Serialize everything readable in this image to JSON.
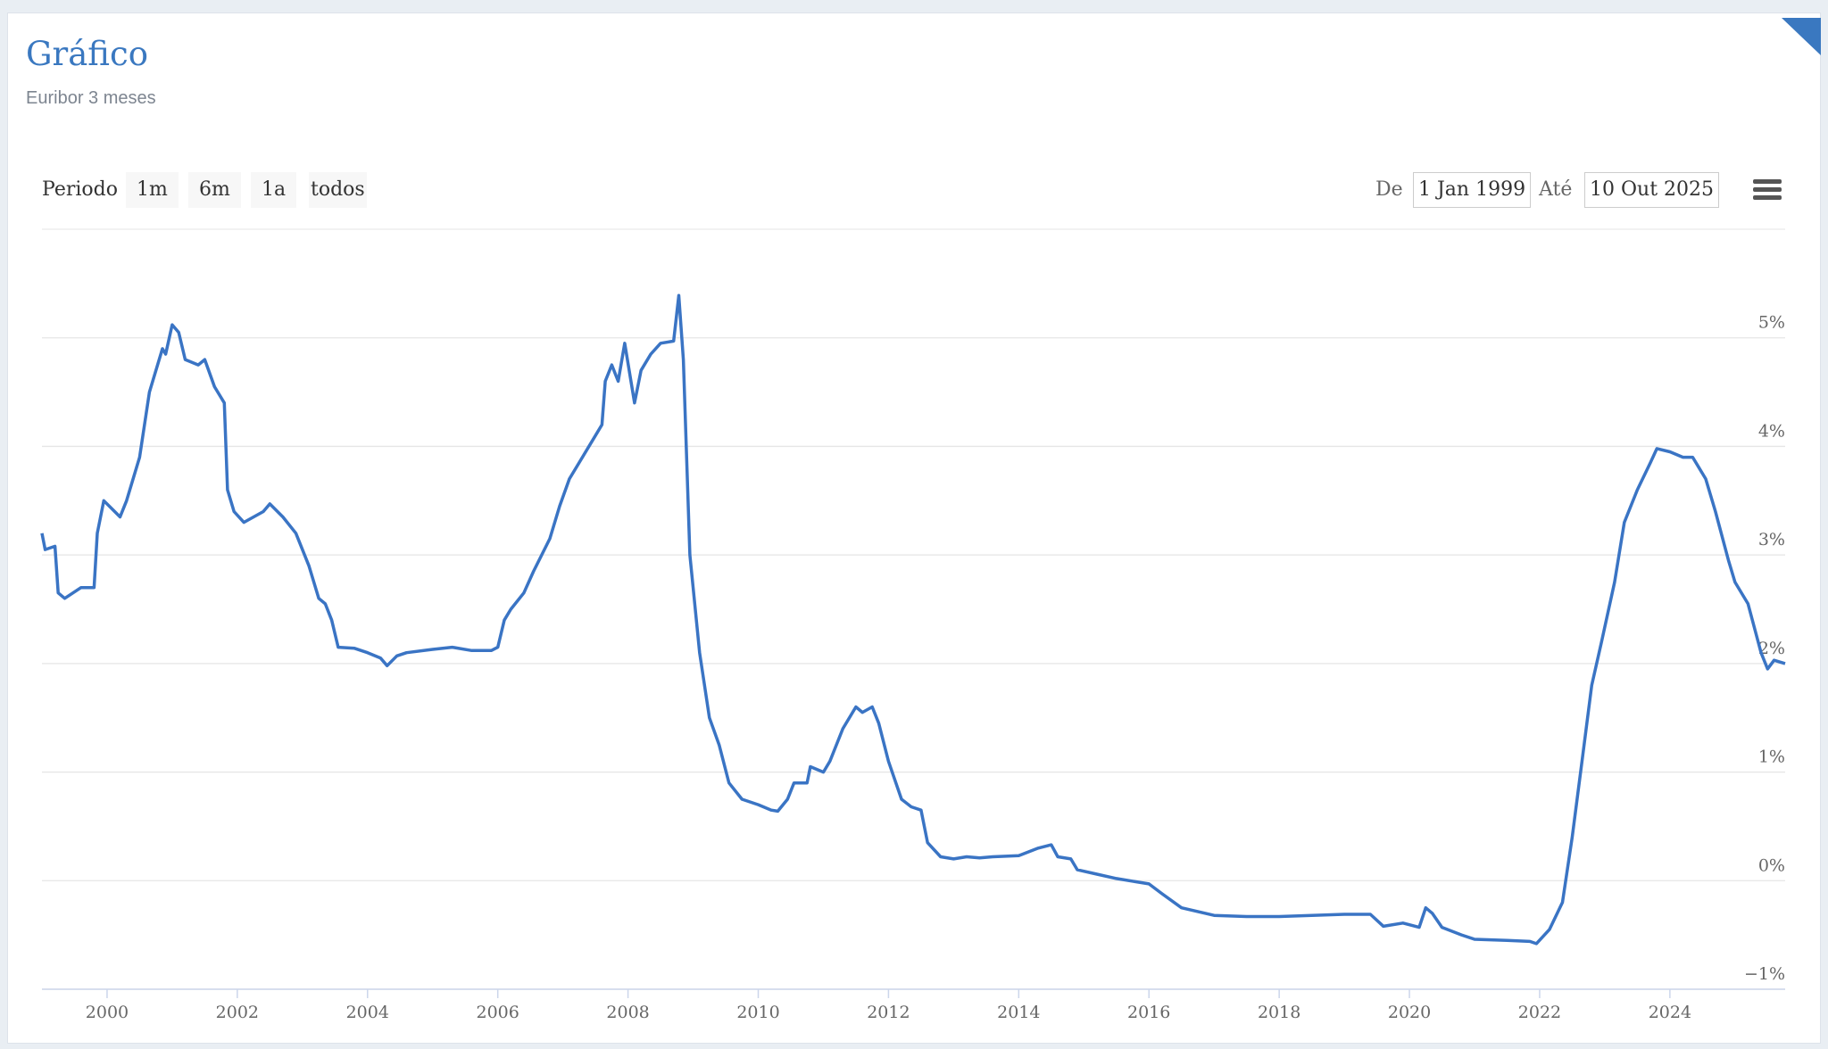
{
  "chart_data": {
    "type": "line",
    "title": "Gráfico",
    "subtitle": "Euribor 3 meses",
    "color": "#3a74c4",
    "x": [
      1999.0,
      1999.05,
      1999.2,
      1999.25,
      1999.35,
      1999.6,
      1999.8,
      1999.85,
      1999.95,
      2000.2,
      2000.3,
      2000.5,
      2000.65,
      2000.85,
      2000.9,
      2001.0,
      2001.1,
      2001.2,
      2001.4,
      2001.5,
      2001.65,
      2001.8,
      2001.85,
      2001.95,
      2002.1,
      2002.4,
      2002.5,
      2002.7,
      2002.9,
      2003.1,
      2003.25,
      2003.35,
      2003.45,
      2003.55,
      2003.8,
      2004.0,
      2004.2,
      2004.3,
      2004.45,
      2004.6,
      2005.0,
      2005.3,
      2005.6,
      2005.9,
      2006.0,
      2006.1,
      2006.2,
      2006.4,
      2006.55,
      2006.8,
      2006.95,
      2007.1,
      2007.3,
      2007.5,
      2007.6,
      2007.65,
      2007.75,
      2007.85,
      2007.95,
      2008.1,
      2008.2,
      2008.35,
      2008.5,
      2008.7,
      2008.78,
      2008.85,
      2008.95,
      2009.1,
      2009.25,
      2009.4,
      2009.55,
      2009.75,
      2010.0,
      2010.2,
      2010.3,
      2010.45,
      2010.55,
      2010.75,
      2010.8,
      2011.0,
      2011.1,
      2011.3,
      2011.5,
      2011.6,
      2011.75,
      2011.85,
      2012.0,
      2012.2,
      2012.35,
      2012.5,
      2012.6,
      2012.8,
      2013.0,
      2013.2,
      2013.4,
      2013.6,
      2014.0,
      2014.3,
      2014.5,
      2014.6,
      2014.8,
      2014.9,
      2015.2,
      2015.5,
      2016.0,
      2016.2,
      2016.5,
      2017.0,
      2017.5,
      2018.0,
      2018.5,
      2019.0,
      2019.4,
      2019.6,
      2019.9,
      2020.15,
      2020.25,
      2020.35,
      2020.5,
      2020.8,
      2021.0,
      2021.5,
      2021.85,
      2021.95,
      2022.15,
      2022.35,
      2022.5,
      2022.65,
      2022.8,
      2022.95,
      2023.15,
      2023.3,
      2023.5,
      2023.7,
      2023.8,
      2024.0,
      2024.2,
      2024.35,
      2024.55,
      2024.7,
      2024.9,
      2025.0,
      2025.2,
      2025.4,
      2025.5,
      2025.6,
      2025.77
    ],
    "values": [
      3.2,
      3.05,
      3.08,
      2.65,
      2.6,
      2.7,
      2.7,
      3.2,
      3.5,
      3.35,
      3.5,
      3.9,
      4.5,
      4.9,
      4.85,
      5.12,
      5.05,
      4.8,
      4.75,
      4.8,
      4.55,
      4.4,
      3.6,
      3.4,
      3.3,
      3.4,
      3.47,
      3.35,
      3.2,
      2.9,
      2.6,
      2.55,
      2.4,
      2.15,
      2.14,
      2.1,
      2.05,
      1.98,
      2.07,
      2.1,
      2.13,
      2.15,
      2.12,
      2.12,
      2.15,
      2.4,
      2.5,
      2.65,
      2.85,
      3.15,
      3.45,
      3.7,
      3.9,
      4.1,
      4.2,
      4.6,
      4.75,
      4.6,
      4.95,
      4.4,
      4.7,
      4.85,
      4.95,
      4.97,
      5.39,
      4.8,
      3.0,
      2.1,
      1.5,
      1.25,
      0.9,
      0.75,
      0.7,
      0.65,
      0.64,
      0.75,
      0.9,
      0.9,
      1.05,
      1.0,
      1.1,
      1.4,
      1.6,
      1.55,
      1.6,
      1.45,
      1.1,
      0.75,
      0.68,
      0.65,
      0.35,
      0.22,
      0.2,
      0.22,
      0.21,
      0.22,
      0.23,
      0.3,
      0.33,
      0.22,
      0.2,
      0.1,
      0.06,
      0.02,
      -0.03,
      -0.12,
      -0.25,
      -0.32,
      -0.33,
      -0.33,
      -0.32,
      -0.31,
      -0.31,
      -0.42,
      -0.39,
      -0.43,
      -0.25,
      -0.3,
      -0.43,
      -0.5,
      -0.54,
      -0.55,
      -0.56,
      -0.58,
      -0.45,
      -0.2,
      0.4,
      1.1,
      1.8,
      2.2,
      2.75,
      3.3,
      3.6,
      3.85,
      3.98,
      3.95,
      3.9,
      3.9,
      3.7,
      3.4,
      2.95,
      2.75,
      2.55,
      2.1,
      1.95,
      2.03,
      2.0
    ],
    "xlim": [
      1999.0,
      2025.77
    ],
    "xticks": [
      2000,
      2002,
      2004,
      2006,
      2008,
      2010,
      2012,
      2014,
      2016,
      2018,
      2020,
      2022,
      2024
    ],
    "ylim": [
      -1,
      6
    ],
    "yticks": [
      {
        "value": -1,
        "label": "−1%"
      },
      {
        "value": 0,
        "label": "0%"
      },
      {
        "value": 1,
        "label": "1%"
      },
      {
        "value": 2,
        "label": "2%"
      },
      {
        "value": 3,
        "label": "3%"
      },
      {
        "value": 4,
        "label": "4%"
      },
      {
        "value": 5,
        "label": "5%"
      }
    ],
    "grid": true
  },
  "range_selector": {
    "period_label": "Periodo",
    "buttons": [
      "1m",
      "6m",
      "1a",
      "todos"
    ],
    "from_label": "De",
    "from": "1 Jan 1999",
    "to_label": "Até",
    "to": "10 Out 2025"
  }
}
